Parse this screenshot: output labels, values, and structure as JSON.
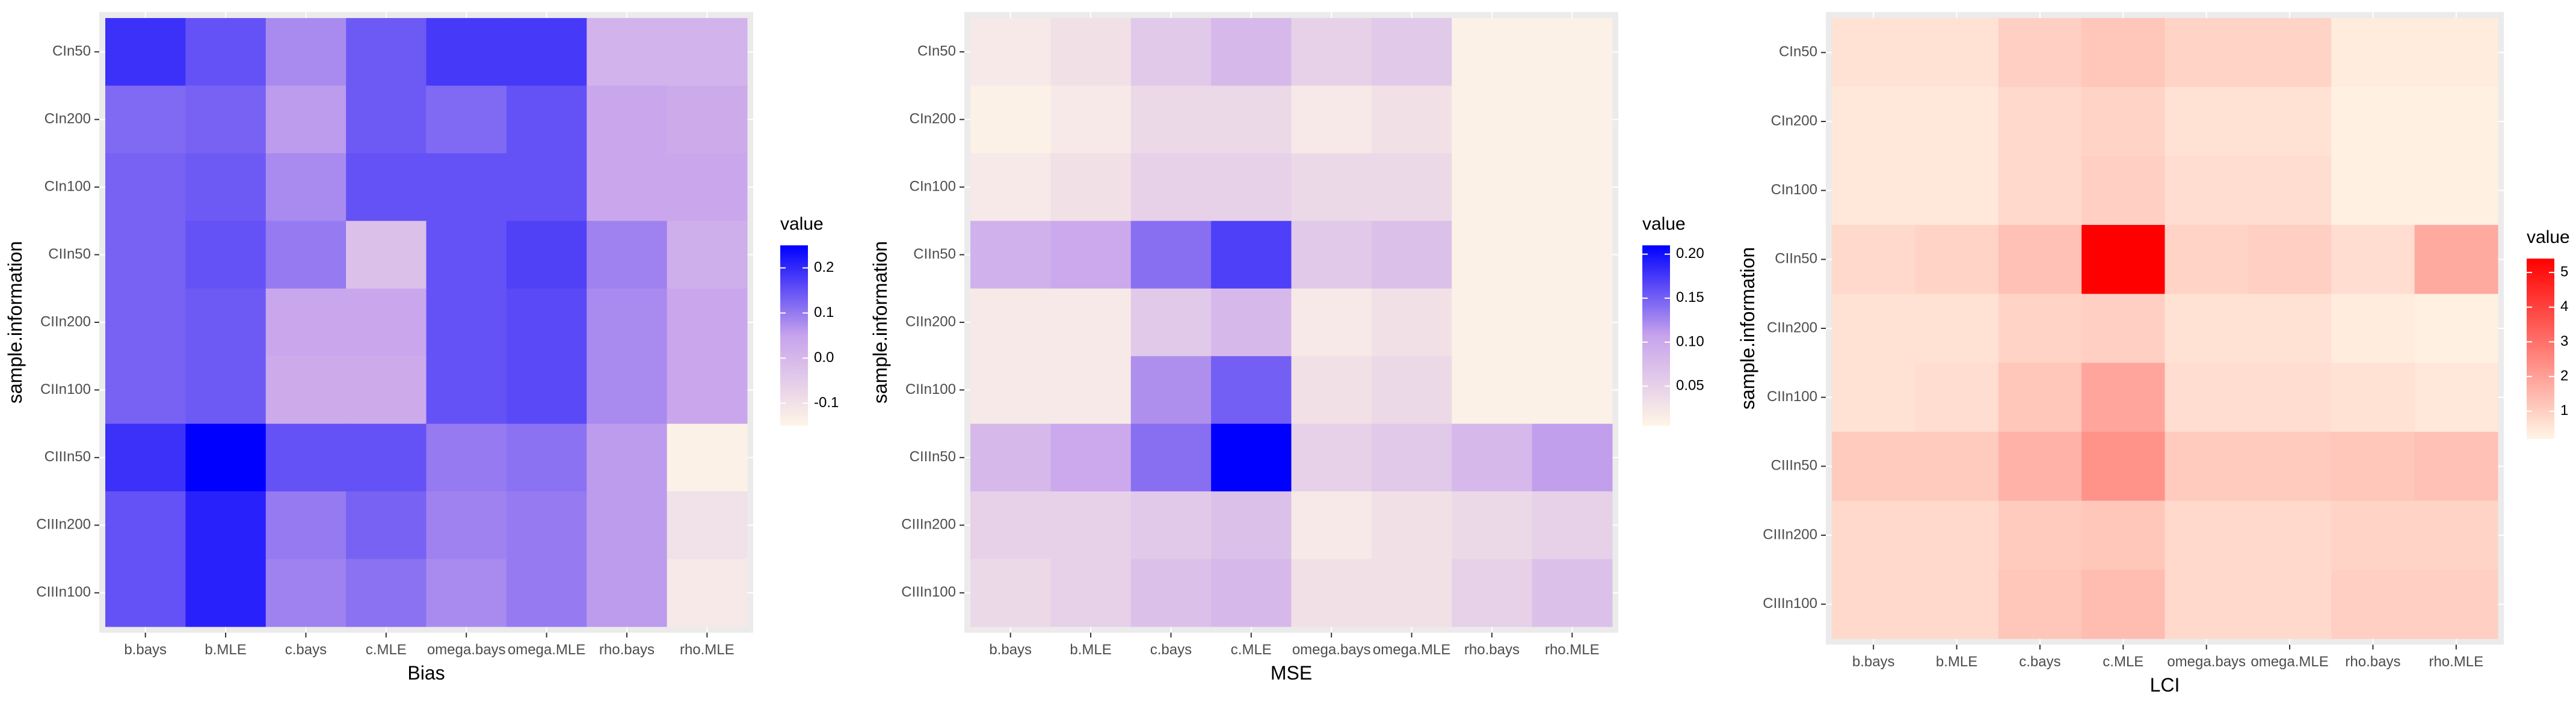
{
  "chart_data": [
    {
      "type": "heatmap",
      "xlabel": "Bias",
      "ylabel": "sample.information",
      "x_categories": [
        "b.bays",
        "b.MLE",
        "c.bays",
        "c.MLE",
        "omega.bays",
        "omega.MLE",
        "rho.bays",
        "rho.MLE"
      ],
      "y_categories": [
        "CIn50",
        "CIn200",
        "CIn100",
        "CIIn50",
        "CIIn200",
        "CIIn100",
        "CIIIn50",
        "CIIIn200",
        "CIIIn100"
      ],
      "values": [
        [
          0.19,
          0.15,
          0.08,
          0.14,
          0.18,
          0.18,
          0.01,
          0.01
        ],
        [
          0.12,
          0.13,
          0.06,
          0.14,
          0.12,
          0.15,
          0.04,
          0.03
        ],
        [
          0.13,
          0.14,
          0.08,
          0.15,
          0.15,
          0.15,
          0.04,
          0.04
        ],
        [
          0.13,
          0.15,
          0.1,
          -0.02,
          0.15,
          0.17,
          0.09,
          0.02
        ],
        [
          0.13,
          0.14,
          0.04,
          0.04,
          0.15,
          0.16,
          0.08,
          0.04
        ],
        [
          0.13,
          0.14,
          0.03,
          0.03,
          0.15,
          0.16,
          0.08,
          0.04
        ],
        [
          0.19,
          0.25,
          0.15,
          0.15,
          0.1,
          0.11,
          0.06,
          -0.14
        ],
        [
          0.15,
          0.21,
          0.1,
          0.13,
          0.09,
          0.1,
          0.06,
          -0.1
        ],
        [
          0.15,
          0.21,
          0.09,
          0.11,
          0.08,
          0.1,
          0.06,
          -0.12
        ]
      ],
      "legend": {
        "title": "value",
        "min": -0.15,
        "max": 0.25,
        "breaks": [
          -0.1,
          0.0,
          0.1,
          0.2
        ],
        "break_labels": [
          "-0.1",
          "0.0",
          "0.1",
          "0.2"
        ]
      },
      "colors": {
        "low": "#FFF5E6",
        "mid": "#C7A3EC",
        "high": "#0000FF"
      },
      "grid": true,
      "legend_position": "right"
    },
    {
      "type": "heatmap",
      "xlabel": "MSE",
      "ylabel": "sample.information",
      "x_categories": [
        "b.bays",
        "b.MLE",
        "c.bays",
        "c.MLE",
        "omega.bays",
        "omega.MLE",
        "rho.bays",
        "rho.MLE"
      ],
      "y_categories": [
        "CIn50",
        "CIn200",
        "CIn100",
        "CIIn50",
        "CIIn200",
        "CIIn100",
        "CIIIn50",
        "CIIIn200",
        "CIIIn100"
      ],
      "values": [
        [
          0.02,
          0.03,
          0.06,
          0.08,
          0.05,
          0.06,
          0.01,
          0.01
        ],
        [
          0.01,
          0.02,
          0.04,
          0.04,
          0.02,
          0.03,
          0.01,
          0.01
        ],
        [
          0.02,
          0.03,
          0.05,
          0.05,
          0.04,
          0.04,
          0.01,
          0.01
        ],
        [
          0.09,
          0.1,
          0.14,
          0.17,
          0.06,
          0.07,
          0.01,
          0.01
        ],
        [
          0.02,
          0.02,
          0.06,
          0.08,
          0.02,
          0.03,
          0.01,
          0.01
        ],
        [
          0.02,
          0.02,
          0.12,
          0.15,
          0.03,
          0.04,
          0.01,
          0.01
        ],
        [
          0.08,
          0.1,
          0.14,
          0.21,
          0.05,
          0.06,
          0.08,
          0.11
        ],
        [
          0.05,
          0.05,
          0.06,
          0.07,
          0.02,
          0.03,
          0.04,
          0.05
        ],
        [
          0.04,
          0.05,
          0.07,
          0.08,
          0.03,
          0.03,
          0.05,
          0.07
        ]
      ],
      "legend": {
        "title": "value",
        "min": 0.005,
        "max": 0.21,
        "breaks": [
          0.05,
          0.1,
          0.15,
          0.2
        ],
        "break_labels": [
          "0.05",
          "0.10",
          "0.15",
          "0.20"
        ]
      },
      "colors": {
        "low": "#FFF5E6",
        "mid": "#C7A3EC",
        "high": "#0000FF"
      },
      "grid": true,
      "legend_position": "right"
    },
    {
      "type": "heatmap",
      "xlabel": "LCI",
      "ylabel": "sample.information",
      "x_categories": [
        "b.bays",
        "b.MLE",
        "c.bays",
        "c.MLE",
        "omega.bays",
        "omega.MLE",
        "rho.bays",
        "rho.MLE"
      ],
      "y_categories": [
        "CIn50",
        "CIn200",
        "CIn100",
        "CIIn50",
        "CIIn200",
        "CIIn100",
        "CIIIn50",
        "CIIIn200",
        "CIIIn100"
      ],
      "values": [
        [
          0.6,
          0.6,
          1.0,
          1.2,
          0.9,
          0.9,
          0.4,
          0.4
        ],
        [
          0.5,
          0.5,
          0.8,
          0.9,
          0.6,
          0.6,
          0.3,
          0.3
        ],
        [
          0.5,
          0.5,
          0.8,
          1.0,
          0.7,
          0.7,
          0.3,
          0.3
        ],
        [
          0.8,
          0.9,
          1.3,
          5.4,
          0.9,
          1.0,
          0.7,
          1.8
        ],
        [
          0.6,
          0.6,
          0.9,
          1.0,
          0.6,
          0.6,
          0.4,
          0.3
        ],
        [
          0.6,
          0.7,
          1.2,
          1.9,
          0.7,
          0.7,
          0.6,
          0.5
        ],
        [
          1.1,
          1.1,
          1.6,
          2.3,
          1.1,
          1.1,
          1.2,
          1.3
        ],
        [
          0.8,
          0.8,
          1.1,
          1.2,
          0.8,
          0.8,
          0.9,
          0.9
        ],
        [
          0.8,
          0.8,
          1.2,
          1.4,
          0.8,
          0.8,
          1.0,
          1.0
        ]
      ],
      "legend": {
        "title": "value",
        "min": 0.2,
        "max": 5.4,
        "breaks": [
          1,
          2,
          3,
          4,
          5
        ],
        "break_labels": [
          "1",
          "2",
          "3",
          "4",
          "5"
        ]
      },
      "colors": {
        "low": "#FFF5E6",
        "high": "#FF0000"
      },
      "grid": true,
      "legend_position": "right"
    }
  ]
}
